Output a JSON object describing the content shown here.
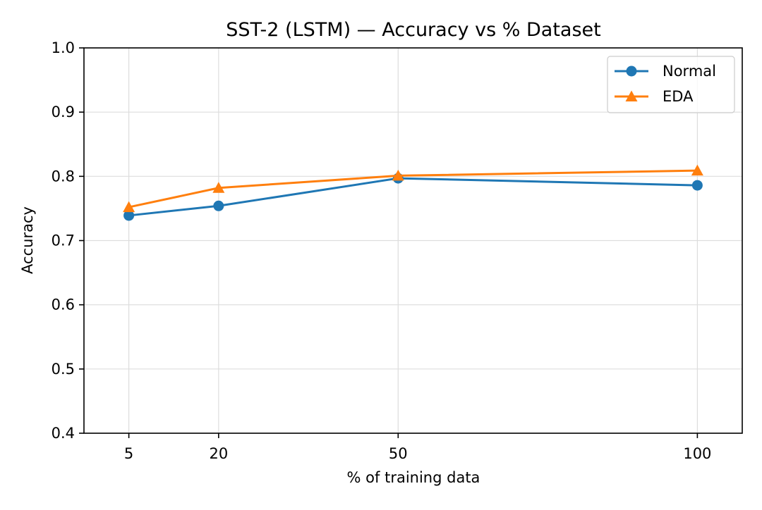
{
  "chart_data": {
    "type": "line",
    "title": "SST-2 (LSTM) — Accuracy vs % Dataset",
    "xlabel": "% of training data",
    "ylabel": "Accuracy",
    "x": [
      5,
      20,
      50,
      100
    ],
    "x_tick_labels": [
      "5",
      "20",
      "50",
      "100"
    ],
    "xlim": [
      -2.5,
      107.5
    ],
    "ylim": [
      0.4,
      1.0
    ],
    "y_ticks": [
      0.4,
      0.5,
      0.6,
      0.7,
      0.8,
      0.9,
      1.0
    ],
    "y_tick_labels": [
      "0.4",
      "0.5",
      "0.6",
      "0.7",
      "0.8",
      "0.9",
      "1.0"
    ],
    "grid": true,
    "legend_position": "top-right",
    "series": [
      {
        "name": "Normal",
        "values": [
          0.739,
          0.754,
          0.797,
          0.786
        ],
        "marker": "circle",
        "color": "#1f77b4"
      },
      {
        "name": "EDA",
        "values": [
          0.752,
          0.782,
          0.801,
          0.809
        ],
        "marker": "triangle",
        "color": "#ff7f0e"
      }
    ]
  }
}
